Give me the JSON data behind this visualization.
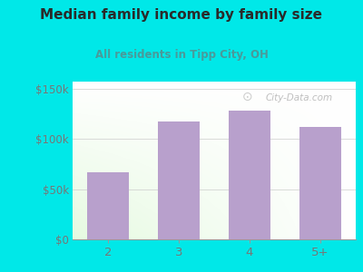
{
  "categories": [
    "2",
    "3",
    "4",
    "5+"
  ],
  "values": [
    67000,
    117000,
    128000,
    112000
  ],
  "bar_color": "#b8a0cc",
  "title": "Median family income by family size",
  "subtitle": "All residents in Tipp City, OH",
  "title_color": "#2a2a2a",
  "subtitle_color": "#4a9a9a",
  "bg_color": "#00e8e8",
  "yticks": [
    0,
    50000,
    100000,
    150000
  ],
  "ytick_labels": [
    "$0",
    "$50k",
    "$100k",
    "$150k"
  ],
  "ylim": [
    0,
    157000
  ],
  "tick_color": "#777777",
  "watermark": "City-Data.com"
}
